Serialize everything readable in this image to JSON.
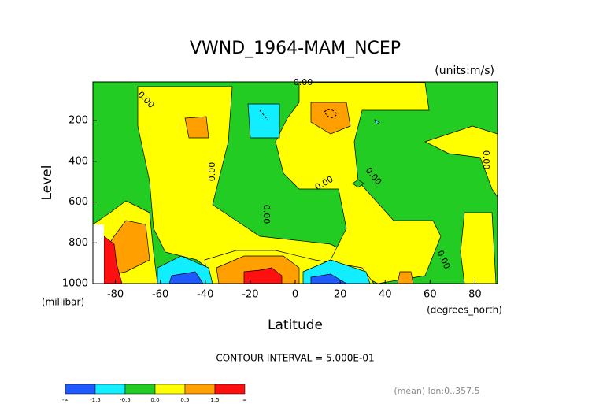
{
  "chart_data": {
    "type": "contour",
    "title": "VWND_1964-MAM_NCEP",
    "units": "(units:m/s)",
    "xlabel": "Latitude",
    "x_units": "(degrees_north)",
    "ylabel": "Level",
    "y_units": "(millibar)",
    "xlim": [
      -90,
      90
    ],
    "xticks": [
      -80,
      -60,
      -40,
      -20,
      0,
      20,
      40,
      60,
      80
    ],
    "ylim": [
      1000,
      10
    ],
    "yticks": [
      200,
      400,
      600,
      800,
      1000
    ],
    "contour_labels": [
      "0.00",
      "0.00",
      "0.00",
      "0.00",
      "0.00",
      "0.00",
      "0.00",
      "0.00"
    ],
    "contour_interval": "CONTOUR INTERVAL = 5.000E-01",
    "colorbar": {
      "colors": [
        "#1e5aff",
        "#10eeff",
        "#22cc22",
        "#ffff00",
        "#ffa000",
        "#ff0f0f"
      ],
      "levels": [
        "-∞",
        "-1.5",
        "-0.5",
        "0.0",
        "0.5",
        "1.5",
        "∞"
      ]
    },
    "footer": "(mean) lon:0..357.5"
  }
}
